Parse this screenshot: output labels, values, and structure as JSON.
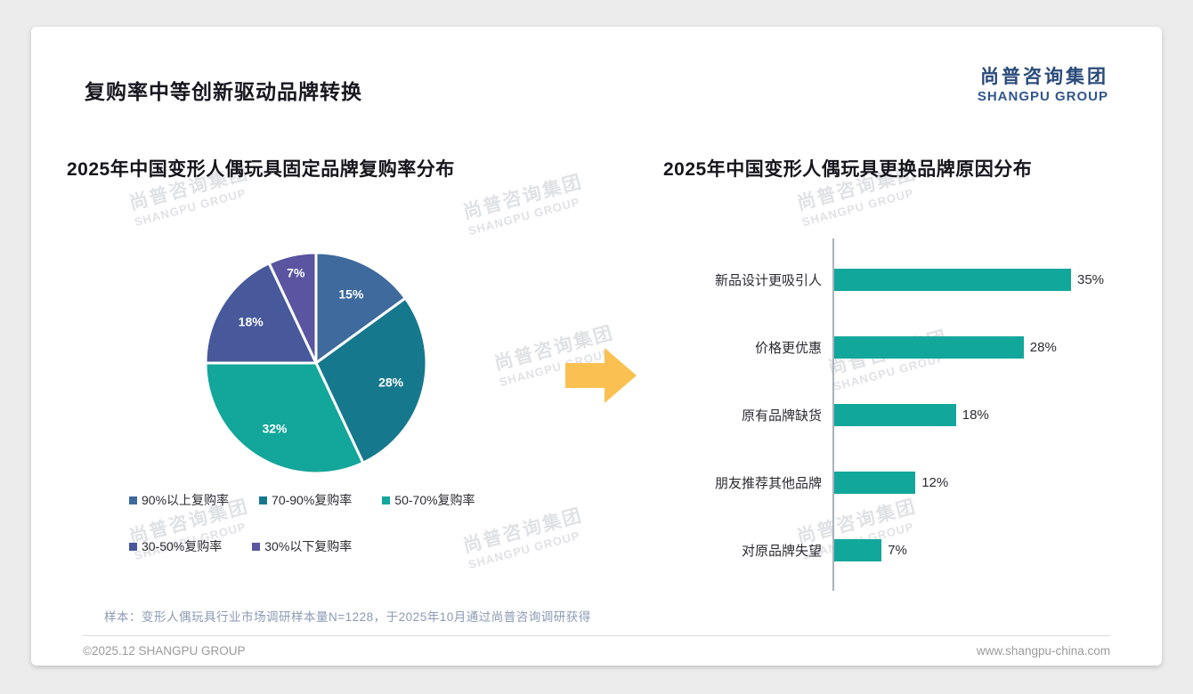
{
  "page": {
    "title": "复购率中等创新驱动品牌转换",
    "logo": {
      "cn": "尚普咨询集团",
      "en": "SHANGPU GROUP"
    },
    "watermark": {
      "cn": "尚普咨询集团",
      "en": "SHANGPU GROUP"
    },
    "arrow_color": "#fac152",
    "footnote": "样本：变形人偶玩具行业市场调研样本量N=1228，于2025年10月通过尚普咨询调研获得",
    "footer_left": "©2025.12 SHANGPU GROUP",
    "footer_right": "www.shangpu-china.com"
  },
  "chart_data": [
    {
      "type": "pie",
      "title": "2025年中国变形人偶玩具固定品牌复购率分布",
      "labels": [
        "90%以上复购率",
        "70-90%复购率",
        "50-70%复购率",
        "30-50%复购率",
        "30%以下复购率"
      ],
      "values": [
        15,
        28,
        32,
        18,
        7
      ],
      "value_suffix": "%",
      "colors": [
        "#3e6a9d",
        "#16788c",
        "#13a69a",
        "#47589b",
        "#5a54a1"
      ],
      "legend_position": "bottom"
    },
    {
      "type": "bar",
      "orientation": "horizontal",
      "title": "2025年中国变形人偶玩具更换品牌原因分布",
      "categories": [
        "新品设计更吸引人",
        "价格更优惠",
        "原有品牌缺货",
        "朋友推荐其他品牌",
        "对原品牌失望"
      ],
      "values": [
        35,
        28,
        18,
        12,
        7
      ],
      "value_suffix": "%",
      "bar_color": "#12a79b",
      "xlim": [
        0,
        40
      ],
      "grid": false
    }
  ]
}
